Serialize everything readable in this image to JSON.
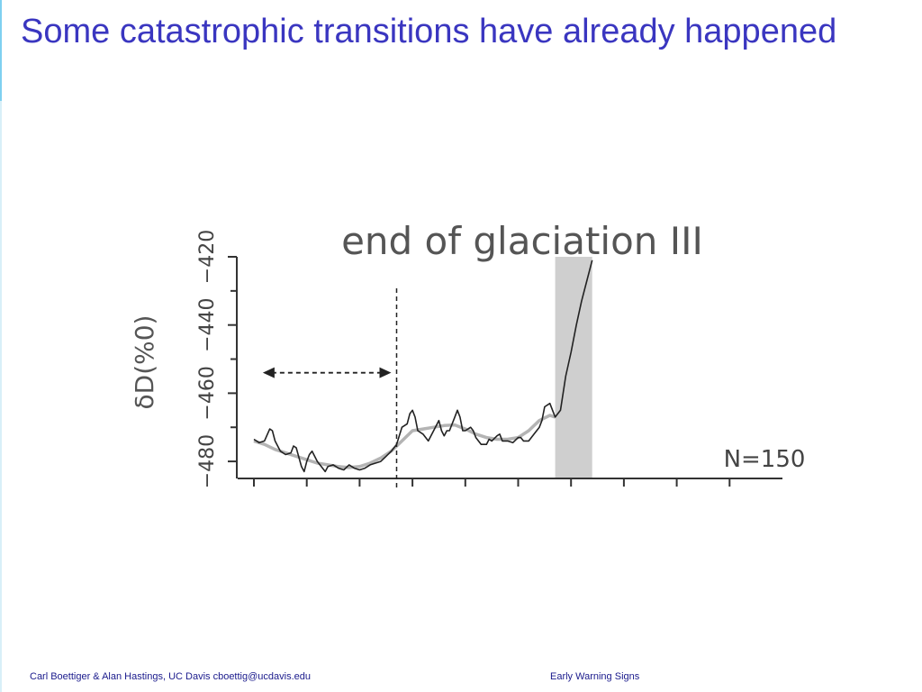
{
  "slide": {
    "title": "Some catastrophic transitions have already happened",
    "footer_left": "Carl Boettiger & Alan Hastings, UC Davis cboettig@ucdavis.edu",
    "footer_right": "Early Warning Signs"
  },
  "chart_data": {
    "type": "line",
    "title": "end of glaciation III",
    "xlabel": "",
    "ylabel": "δD(%0)",
    "ylim": [
      -485,
      -420
    ],
    "xlim": [
      0,
      100
    ],
    "yticks": [
      -480,
      -460,
      -440,
      -420
    ],
    "yticks_minor": [
      -470,
      -450,
      -430
    ],
    "xtick_positions": [
      0,
      10,
      20,
      30,
      40,
      50,
      60,
      70,
      80,
      90
    ],
    "grid": false,
    "legend": "none",
    "colors": {
      "raw": "#222222",
      "smooth": "#b4b4b4",
      "shade": "#cfcfcf",
      "axis": "#333333"
    },
    "annotations": {
      "sample_size": "N=150",
      "transition_marker_x": 27,
      "window_arrow": {
        "x_start": 1,
        "x_end": 27,
        "y": -454
      },
      "shaded_region": {
        "x_start": 57,
        "x_end": 64
      }
    },
    "series": [
      {
        "role": "raw",
        "x": [
          0,
          1,
          2,
          3,
          3.5,
          4,
          5,
          6,
          7,
          7.5,
          8,
          9,
          9.5,
          10,
          10.5,
          11,
          12,
          13,
          13.5,
          14,
          15,
          16,
          17,
          18,
          19,
          20,
          21,
          22,
          23,
          24,
          25,
          26,
          27,
          28,
          29,
          29.5,
          30,
          30.5,
          31,
          32,
          33,
          34,
          35,
          35.5,
          36,
          36.5,
          37,
          38,
          38.5,
          39,
          39.5,
          40,
          41,
          41.5,
          42,
          43,
          44,
          44.5,
          45,
          46,
          46.5,
          47,
          48,
          49,
          50,
          50.5,
          51,
          52,
          53,
          54,
          54.5,
          55,
          56,
          57,
          58,
          59,
          60,
          61,
          62,
          63,
          64
        ],
        "y": [
          -473.5,
          -474.5,
          -474,
          -470.5,
          -471,
          -474,
          -477,
          -478,
          -477.5,
          -475.5,
          -476,
          -481.5,
          -483,
          -480,
          -478,
          -477,
          -480,
          -482,
          -483,
          -481.5,
          -481,
          -482,
          -482.5,
          -481,
          -482,
          -482.5,
          -482,
          -481,
          -480.5,
          -480,
          -478.5,
          -477,
          -475,
          -470,
          -469,
          -466,
          -465,
          -467,
          -471,
          -472,
          -474,
          -471,
          -468,
          -471,
          -472.5,
          -471,
          -471,
          -467,
          -465,
          -467,
          -471,
          -471,
          -470,
          -471,
          -473,
          -475,
          -475,
          -473.5,
          -474,
          -472.5,
          -472,
          -474,
          -474,
          -474.5,
          -473,
          -473,
          -474,
          -474,
          -472,
          -470,
          -468,
          -464,
          -463,
          -467,
          -465,
          -455,
          -448,
          -440,
          -433,
          -427,
          -421
        ]
      },
      {
        "role": "smooth",
        "x": [
          0,
          2,
          4,
          6,
          8,
          10,
          12,
          14,
          16,
          18,
          20,
          22,
          24,
          26,
          28,
          30,
          32,
          34,
          36,
          38,
          40,
          42,
          44,
          46,
          48,
          50,
          52,
          54,
          56,
          57
        ],
        "y": [
          -474,
          -475,
          -476.5,
          -477.5,
          -478.5,
          -479.5,
          -480.5,
          -481,
          -481.5,
          -481.8,
          -481.5,
          -480.5,
          -479,
          -477,
          -474,
          -471,
          -470.5,
          -470,
          -469.5,
          -469.3,
          -470.5,
          -472,
          -473,
          -473.5,
          -473.5,
          -473,
          -471,
          -468,
          -466.5,
          -467
        ]
      }
    ]
  }
}
